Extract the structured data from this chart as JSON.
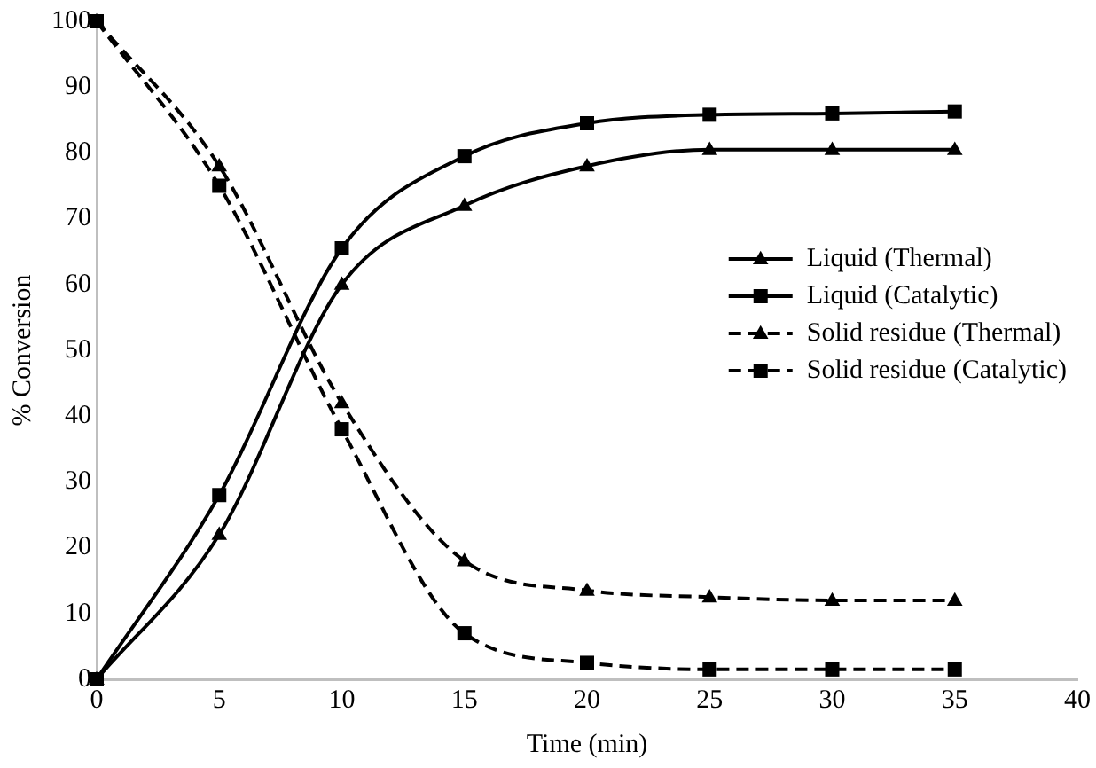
{
  "chart_data": {
    "type": "line",
    "xlabel": "Time (min)",
    "ylabel": "% Conversion",
    "x": [
      0,
      5,
      10,
      15,
      20,
      25,
      30,
      35
    ],
    "xlim": [
      0,
      40
    ],
    "xticks": [
      0,
      5,
      10,
      15,
      20,
      25,
      30,
      35,
      40
    ],
    "ylim": [
      0,
      100
    ],
    "yticks": [
      0,
      10,
      20,
      30,
      40,
      50,
      60,
      70,
      80,
      90,
      100
    ],
    "grid": false,
    "legend": "right",
    "series": [
      {
        "name": "Liquid (Thermal)",
        "color": "#000000",
        "marker": "triangle",
        "line_style": "solid",
        "values": [
          0,
          22,
          60,
          72,
          78,
          80.5,
          80.5,
          80.5
        ]
      },
      {
        "name": "Liquid (Catalytic)",
        "color": "#000000",
        "marker": "square",
        "line_style": "solid",
        "values": [
          0,
          28,
          65.5,
          79.5,
          84.5,
          85.8,
          86,
          86.3
        ]
      },
      {
        "name": "Solid residue (Thermal)",
        "color": "#000000",
        "marker": "triangle",
        "line_style": "dashed",
        "values": [
          100,
          78,
          42,
          18,
          13.5,
          12.5,
          12,
          12
        ]
      },
      {
        "name": "Solid residue (Catalytic)",
        "color": "#000000",
        "marker": "square",
        "line_style": "dashed",
        "values": [
          100,
          75,
          38,
          7,
          2.5,
          1.5,
          1.5,
          1.5
        ]
      }
    ]
  }
}
